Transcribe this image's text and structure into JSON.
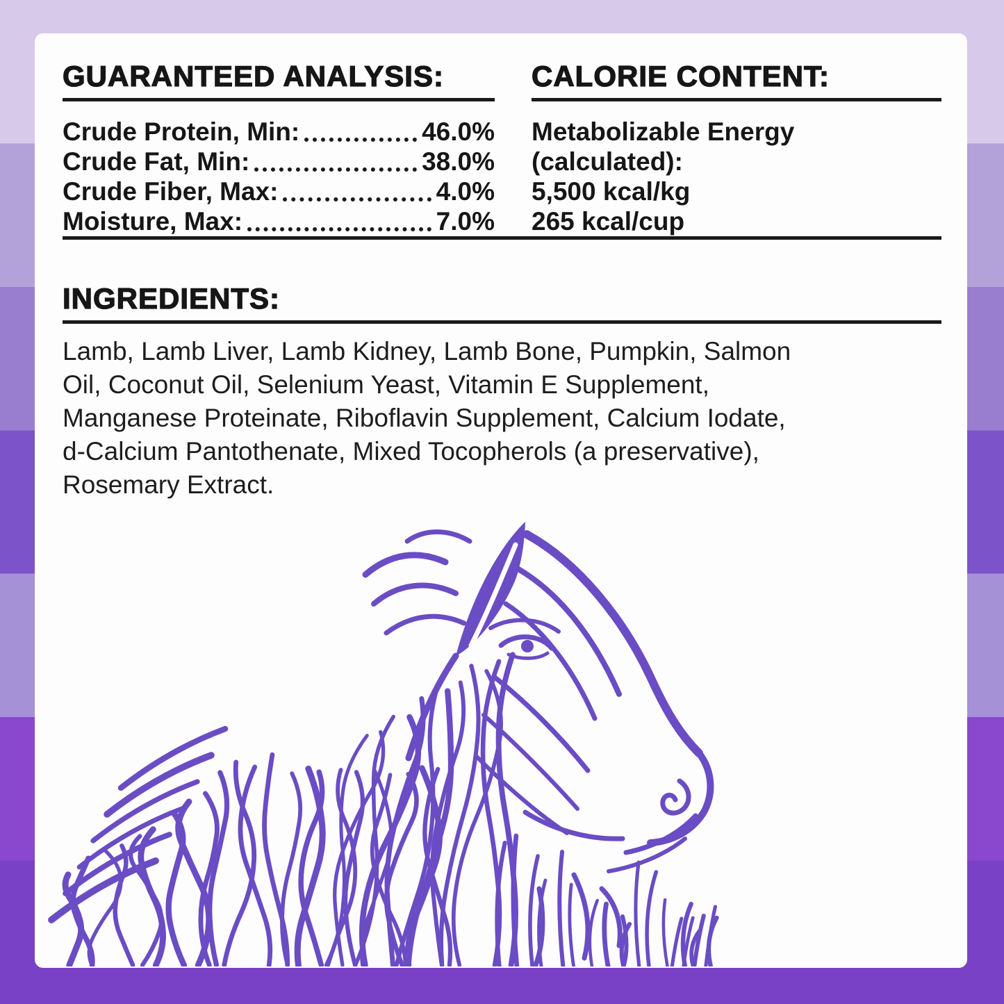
{
  "background": {
    "stripes": [
      "#d7c9e9",
      "#b3a2d9",
      "#997ed0",
      "#7c53c9",
      "#a591d6",
      "#8a48ce",
      "#7941c5"
    ],
    "card_color": "#fdfdfe",
    "text_color": "#161616",
    "lamb_color": "#6a4cc4"
  },
  "guaranteed_analysis": {
    "title": "GUARANTEED ANALYSIS:",
    "rows": [
      {
        "label": "Crude Protein, Min:",
        "value": "46.0%"
      },
      {
        "label": "Crude Fat, Min:",
        "value": "38.0%"
      },
      {
        "label": "Crude Fiber, Max:",
        "value": "4.0%"
      },
      {
        "label": "Moisture, Max:",
        "value": "7.0%"
      }
    ]
  },
  "calorie_content": {
    "title": "CALORIE CONTENT:",
    "lines": [
      "Metabolizable Energy",
      "(calculated):",
      "5,500 kcal/kg",
      "265 kcal/cup"
    ]
  },
  "ingredients": {
    "title": "INGREDIENTS:",
    "lines": [
      "Lamb, Lamb Liver, Lamb Kidney, Lamb Bone, Pumpkin, Salmon",
      "Oil, Coconut Oil, Selenium Yeast, Vitamin E Supplement,",
      "Manganese Proteinate, Riboflavin Supplement, Calcium Iodate,",
      "d-Calcium Pantothenate, Mixed Tocopherols (a preservative),",
      "Rosemary Extract."
    ]
  },
  "illustration": {
    "name": "lamb-line-art"
  }
}
